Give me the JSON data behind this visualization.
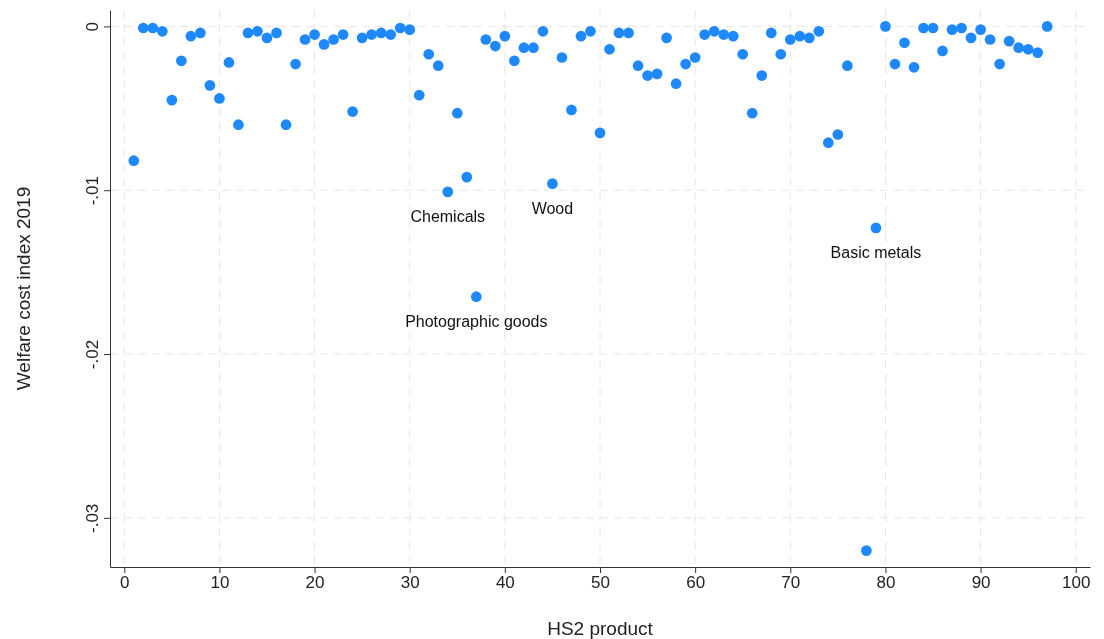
{
  "chart_data": {
    "type": "scatter",
    "xlabel": "HS2 product",
    "ylabel": "Welfare cost index 2019",
    "x": [
      1,
      2,
      3,
      4,
      5,
      6,
      7,
      8,
      9,
      10,
      11,
      12,
      13,
      14,
      15,
      16,
      17,
      18,
      19,
      20,
      21,
      22,
      23,
      24,
      25,
      26,
      27,
      28,
      29,
      30,
      31,
      32,
      33,
      34,
      35,
      36,
      37,
      38,
      39,
      40,
      41,
      42,
      43,
      44,
      45,
      46,
      47,
      48,
      49,
      50,
      51,
      52,
      53,
      54,
      55,
      56,
      57,
      58,
      59,
      60,
      61,
      62,
      63,
      64,
      65,
      66,
      67,
      68,
      69,
      70,
      71,
      72,
      73,
      74,
      75,
      76,
      78,
      79,
      80,
      81,
      82,
      83,
      84,
      85,
      86,
      87,
      88,
      89,
      90,
      91,
      92,
      93,
      94,
      95,
      96,
      97
    ],
    "series": [
      {
        "color": "#1e88ff",
        "values": [
          -0.0082,
          -0.0001,
          -0.0001,
          -0.0003,
          -0.0045,
          -0.0021,
          -0.0006,
          -0.0004,
          -0.0036,
          -0.0044,
          -0.0022,
          -0.006,
          -0.0004,
          -0.0003,
          -0.0007,
          -0.0004,
          -0.006,
          -0.0023,
          -0.0008,
          -0.0005,
          -0.0011,
          -0.0008,
          -0.0005,
          -0.0052,
          -0.0007,
          -0.0005,
          -0.0004,
          -0.0005,
          -0.0001,
          -0.0002,
          -0.0042,
          -0.0017,
          -0.0024,
          -0.0101,
          -0.0053,
          -0.0092,
          -0.0165,
          -0.0008,
          -0.0012,
          -0.0006,
          -0.0021,
          -0.0013,
          -0.0013,
          -0.0003,
          -0.0096,
          -0.0019,
          -0.0051,
          -0.0006,
          -0.0003,
          -0.0065,
          -0.0014,
          -0.0004,
          -0.0004,
          -0.0024,
          -0.003,
          -0.0029,
          -0.0007,
          -0.0035,
          -0.0023,
          -0.0019,
          -0.0005,
          -0.0003,
          -0.0005,
          -0.0006,
          -0.0017,
          -0.0053,
          -0.003,
          -0.0004,
          -0.0017,
          -0.0008,
          -0.0006,
          -0.0007,
          -0.0003,
          -0.0071,
          -0.0066,
          -0.0024,
          -0.032,
          -0.0123,
          0,
          -0.0023,
          -0.001,
          -0.0025,
          -0.0001,
          -0.0001,
          -0.0015,
          -0.0002,
          -0.0001,
          -0.0007,
          -0.0002,
          -0.0008,
          -0.0023,
          -0.0009,
          -0.0013,
          -0.0014,
          -0.0016,
          0
        ]
      }
    ],
    "xlim": [
      -1.5,
      101.5
    ],
    "xticks": [
      0,
      10,
      20,
      30,
      40,
      50,
      60,
      70,
      80,
      90,
      100
    ],
    "ylim": [
      -0.033,
      0.001
    ],
    "yticks": [
      {
        "value": 0,
        "label": "0"
      },
      {
        "value": -0.01,
        "label": "-.01"
      },
      {
        "value": -0.02,
        "label": "-.02"
      },
      {
        "value": -0.03,
        "label": "-.03"
      }
    ],
    "grid": true,
    "marker": "circle",
    "annotations": [
      {
        "text": "Chemicals",
        "x": 34,
        "y": -0.0101
      },
      {
        "text": "Wood",
        "x": 45,
        "y": -0.0096
      },
      {
        "text": "Photographic goods",
        "x": 37,
        "y": -0.0165
      },
      {
        "text": "Basic metals",
        "x": 79,
        "y": -0.0123
      }
    ]
  }
}
